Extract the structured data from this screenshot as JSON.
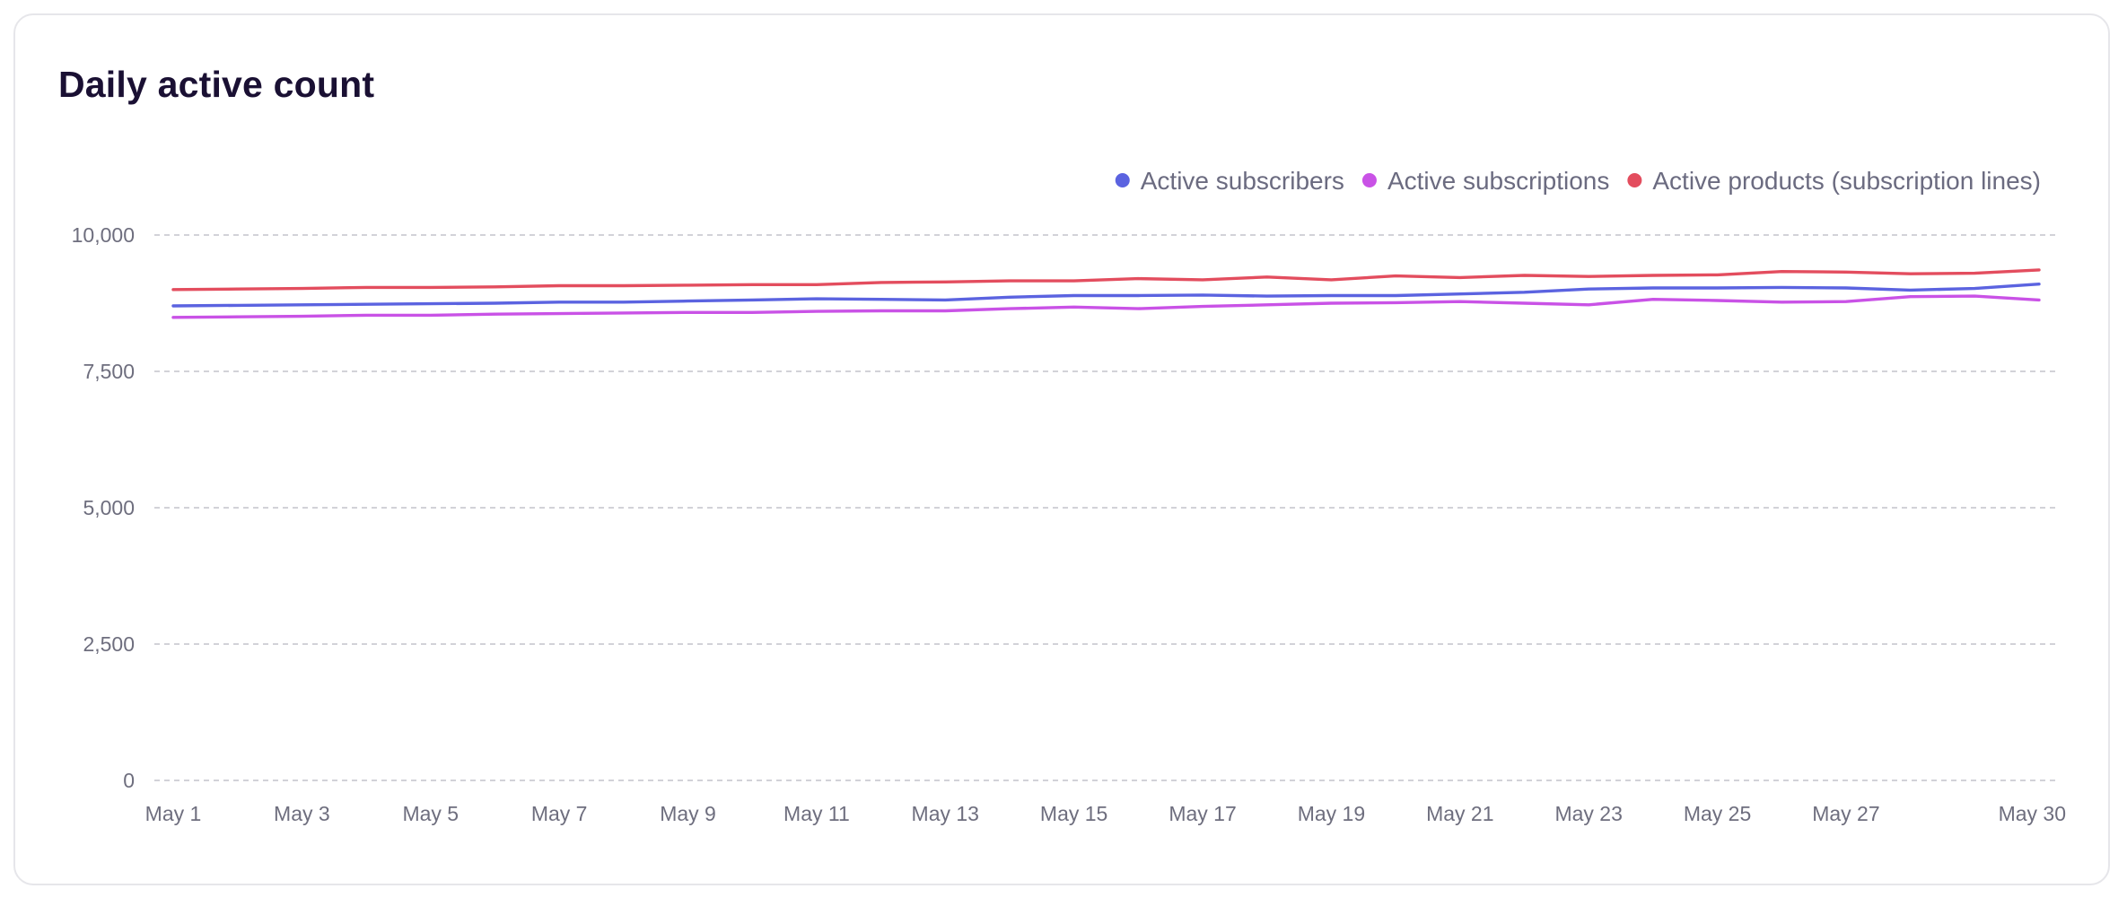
{
  "card": {
    "title": "Daily active count"
  },
  "colors": {
    "background": "#ffffff",
    "border": "#e6e6ea",
    "title": "#1a1033",
    "grid": "#c4c4cc",
    "tick_text": "#6e6e7e",
    "legend_text": "#6b6b80"
  },
  "chart_data": {
    "type": "line",
    "title": "Daily active count",
    "xlabel": "",
    "ylabel": "",
    "ylim": [
      0,
      10000
    ],
    "yticks": [
      0,
      2500,
      5000,
      7500,
      10000
    ],
    "ytick_labels": [
      "0",
      "2,500",
      "5,000",
      "7,500",
      "10,000"
    ],
    "xtick_labels": [
      "May 1",
      "May 3",
      "May 5",
      "May 7",
      "May 9",
      "May 11",
      "May 13",
      "May 15",
      "May 17",
      "May 19",
      "May 21",
      "May 23",
      "May 25",
      "May 27",
      "May 30"
    ],
    "xtick_days": [
      1,
      3,
      5,
      7,
      9,
      11,
      13,
      15,
      17,
      19,
      21,
      23,
      25,
      27,
      30
    ],
    "grid": true,
    "legend_position": "top-right",
    "x": [
      1,
      2,
      3,
      4,
      5,
      6,
      7,
      8,
      9,
      10,
      11,
      12,
      13,
      14,
      15,
      16,
      17,
      18,
      19,
      20,
      21,
      22,
      23,
      24,
      25,
      26,
      27,
      28,
      29,
      30
    ],
    "series": [
      {
        "name": "Active subscribers",
        "color": "#5b63e0",
        "values": [
          8700,
          8710,
          8720,
          8730,
          8740,
          8750,
          8770,
          8770,
          8790,
          8810,
          8830,
          8820,
          8810,
          8860,
          8890,
          8890,
          8900,
          8880,
          8890,
          8890,
          8920,
          8950,
          9010,
          9030,
          9030,
          9040,
          9030,
          8990,
          9020,
          9100
        ]
      },
      {
        "name": "Active subscriptions",
        "color": "#c952e6",
        "values": [
          8490,
          8500,
          8510,
          8530,
          8530,
          8550,
          8560,
          8570,
          8580,
          8580,
          8600,
          8610,
          8610,
          8650,
          8680,
          8650,
          8690,
          8720,
          8750,
          8760,
          8780,
          8750,
          8720,
          8820,
          8800,
          8770,
          8780,
          8870,
          8880,
          8810
        ]
      },
      {
        "name": "Active products (subscription lines)",
        "color": "#e34d5e",
        "values": [
          9000,
          9010,
          9020,
          9040,
          9040,
          9050,
          9070,
          9070,
          9080,
          9090,
          9090,
          9130,
          9140,
          9160,
          9160,
          9200,
          9180,
          9230,
          9180,
          9250,
          9220,
          9260,
          9240,
          9260,
          9270,
          9330,
          9320,
          9290,
          9300,
          9360
        ]
      }
    ]
  }
}
